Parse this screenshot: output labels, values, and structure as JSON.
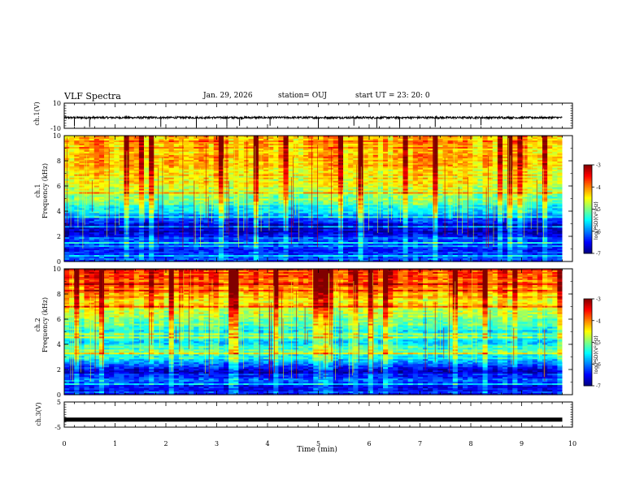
{
  "header": {
    "title": "VLF Spectra",
    "date": "Jan. 29, 2026",
    "station": "station= OUJ",
    "start": "start  UT  =   23: 20: 0"
  },
  "chart_data": {
    "type": "heatmap",
    "title": "VLF Spectra",
    "xlabel": "Time  (min)",
    "x_ticks": [
      "0",
      "1",
      "2",
      "3",
      "4",
      "5",
      "6",
      "7",
      "8",
      "9",
      "10"
    ],
    "xlim": [
      0,
      10
    ],
    "data_end_min": 9.8,
    "panels": [
      {
        "name": "ch1-waveform",
        "type": "line",
        "ylabel": "ch.1(V)",
        "ylim": [
          -10,
          10
        ],
        "y_ticks": [
          "10",
          "-10"
        ],
        "baseline_v": -1.5,
        "spike_times_min": [
          0.2,
          0.5,
          1.9,
          2.6,
          3.2,
          3.45,
          4.05,
          5.0,
          5.7,
          6.15,
          6.6,
          7.3,
          8.2
        ]
      },
      {
        "name": "ch1-spectrogram",
        "type": "heatmap",
        "ylabel_1": "ch.1",
        "ylabel_2": "Frequency  (kHz)",
        "ylim": [
          0,
          10
        ],
        "y_ticks": [
          "0",
          "2",
          "4",
          "6",
          "8",
          "10"
        ],
        "log_psd_profile": [
          {
            "f": 0.0,
            "v": -6.2
          },
          {
            "f": 0.6,
            "v": -6.4
          },
          {
            "f": 1.2,
            "v": -6.5
          },
          {
            "f": 1.8,
            "v": -6.1
          },
          {
            "f": 2.4,
            "v": -6.7
          },
          {
            "f": 3.0,
            "v": -6.6
          },
          {
            "f": 3.6,
            "v": -5.9
          },
          {
            "f": 4.2,
            "v": -5.4
          },
          {
            "f": 5.0,
            "v": -5.0
          },
          {
            "f": 6.0,
            "v": -4.6
          },
          {
            "f": 7.0,
            "v": -4.4
          },
          {
            "f": 8.0,
            "v": -4.2
          },
          {
            "f": 9.0,
            "v": -4.15
          },
          {
            "f": 10.0,
            "v": -4.1
          }
        ]
      },
      {
        "name": "ch2-spectrogram",
        "type": "heatmap",
        "ylabel_1": "ch.2",
        "ylabel_2": "Frequency  (kHz)",
        "ylim": [
          0,
          10
        ],
        "y_ticks": [
          "0",
          "2",
          "4",
          "6",
          "8",
          "10"
        ],
        "log_psd_profile": [
          {
            "f": 0.0,
            "v": -6.3
          },
          {
            "f": 0.6,
            "v": -6.4
          },
          {
            "f": 1.2,
            "v": -6.2
          },
          {
            "f": 1.8,
            "v": -6.6
          },
          {
            "f": 2.4,
            "v": -6.2
          },
          {
            "f": 3.0,
            "v": -5.4
          },
          {
            "f": 3.6,
            "v": -5.2
          },
          {
            "f": 4.2,
            "v": -5.6
          },
          {
            "f": 5.0,
            "v": -5.5
          },
          {
            "f": 6.0,
            "v": -4.9
          },
          {
            "f": 7.0,
            "v": -4.5
          },
          {
            "f": 8.0,
            "v": -4.2
          },
          {
            "f": 9.0,
            "v": -3.9
          },
          {
            "f": 10.0,
            "v": -3.7
          }
        ]
      },
      {
        "name": "ch3-waveform",
        "type": "line",
        "ylabel": "ch.3(V)",
        "ylim": [
          -5,
          5
        ],
        "y_ticks": [
          "5",
          "-5"
        ],
        "baseline_v": -2.0
      }
    ],
    "colorbar": {
      "label": "log(PSD)(V²/Hz)",
      "range": [
        -7,
        -3
      ],
      "ticks": [
        "-3",
        "-4",
        "-5",
        "-6",
        "-7"
      ]
    }
  },
  "colors": {
    "axis": "#000000",
    "trace": "#000000"
  }
}
